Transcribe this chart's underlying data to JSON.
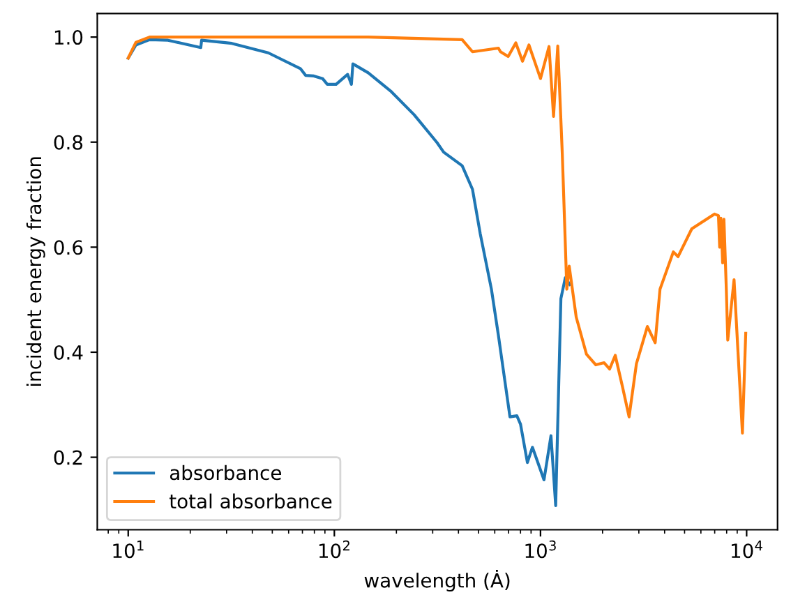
{
  "chart_data": {
    "type": "line",
    "xlabel": "wavelength (Ȧ)",
    "ylabel": "incident energy fraction",
    "log": "x",
    "xlim": [
      7.08,
      14125
    ],
    "xticks": [
      {
        "value": 10,
        "label": "10$^{1}$"
      },
      {
        "value": 100,
        "label": "10$^{2}$"
      },
      {
        "value": 1000,
        "label": "10$^{3}$"
      },
      {
        "value": 10000,
        "label": "10$^{4}$"
      }
    ],
    "ylim": [
      0.062,
      1.045
    ],
    "yticks": [
      0.2,
      0.4,
      0.6,
      0.8,
      {
        "value": 1,
        "label": "1.0"
      }
    ],
    "grid": false,
    "legend": "bottom left",
    "series": [
      {
        "name": "absorbance",
        "color": "#1f77b4",
        "x": [
          10,
          10.9,
          12.7,
          15.6,
          22.5,
          22.7,
          31.8,
          47.8,
          68.4,
          72.6,
          79.5,
          87.7,
          92.4,
          102,
          116,
          121,
          123,
          146,
          189,
          244,
          315,
          339,
          417,
          468,
          510,
          578,
          625,
          711,
          768,
          800,
          864,
          914,
          1040,
          1124,
          1185,
          1256,
          1320,
          1387
        ],
        "values": [
          0.96,
          0.985,
          0.995,
          0.994,
          0.98,
          0.994,
          0.988,
          0.97,
          0.94,
          0.927,
          0.926,
          0.921,
          0.91,
          0.91,
          0.929,
          0.91,
          0.949,
          0.932,
          0.896,
          0.852,
          0.799,
          0.781,
          0.755,
          0.71,
          0.626,
          0.52,
          0.432,
          0.277,
          0.279,
          0.263,
          0.19,
          0.219,
          0.157,
          0.241,
          0.108,
          0.502,
          0.542,
          0.529
        ]
      },
      {
        "name": "total absorbance",
        "color": "#ff7f0e",
        "x": [
          10,
          10.9,
          12.7,
          146,
          417,
          468,
          625,
          640,
          697,
          759,
          818,
          879,
          1000,
          1100,
          1157,
          1213,
          1276,
          1342,
          1378,
          1490,
          1672,
          1855,
          2036,
          2165,
          2305,
          2500,
          2690,
          2920,
          3300,
          3600,
          3800,
          4410,
          4650,
          5420,
          6980,
          7300,
          7400,
          7500,
          7650,
          7760,
          7970,
          8100,
          8690,
          9540,
          9900
        ],
        "values": [
          0.96,
          0.99,
          1.0,
          1.0,
          0.995,
          0.972,
          0.979,
          0.972,
          0.963,
          0.989,
          0.954,
          0.985,
          0.921,
          0.982,
          0.849,
          0.983,
          0.777,
          0.52,
          0.564,
          0.467,
          0.396,
          0.376,
          0.38,
          0.368,
          0.394,
          0.334,
          0.277,
          0.378,
          0.449,
          0.418,
          0.52,
          0.591,
          0.582,
          0.635,
          0.663,
          0.66,
          0.6,
          0.655,
          0.57,
          0.653,
          0.52,
          0.423,
          0.538,
          0.246,
          0.436
        ]
      }
    ]
  }
}
